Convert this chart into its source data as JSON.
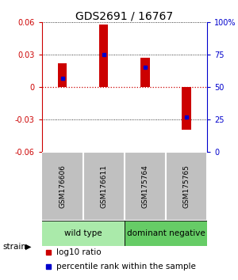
{
  "title": "GDS2691 / 16767",
  "samples": [
    "GSM176606",
    "GSM176611",
    "GSM175764",
    "GSM175765"
  ],
  "log10_values": [
    0.022,
    0.058,
    0.027,
    -0.04
  ],
  "percentile_values": [
    0.57,
    0.75,
    0.65,
    0.27
  ],
  "ylim": [
    -0.06,
    0.06
  ],
  "yticks_left": [
    -0.06,
    -0.03,
    0.0,
    0.03,
    0.06
  ],
  "yticks_right": [
    0,
    25,
    50,
    75,
    100
  ],
  "groups": [
    {
      "label": "wild type",
      "samples": [
        0,
        1
      ],
      "color": "#aaeaaa"
    },
    {
      "label": "dominant negative",
      "samples": [
        2,
        3
      ],
      "color": "#66cc66"
    }
  ],
  "bar_color": "#cc0000",
  "dot_color": "#0000cc",
  "bar_width": 0.22,
  "hline_color": "#cc0000",
  "sample_box_color": "#c0c0c0",
  "legend_red_label": "log10 ratio",
  "legend_blue_label": "percentile rank within the sample",
  "strain_label": "strain",
  "left_tick_color": "#cc0000",
  "right_tick_color": "#0000cc",
  "title_fontsize": 10,
  "tick_fontsize": 7,
  "label_fontsize": 7.5,
  "sample_fontsize": 6.5,
  "group_fontsize": 7.5
}
